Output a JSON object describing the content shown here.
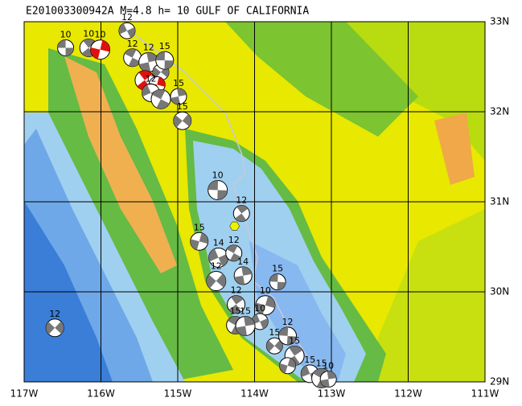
{
  "title": "E201003300942A M=4.8 h= 10 GULF OF CALIFORNIA",
  "map": {
    "lonlim": [
      -117,
      -111
    ],
    "latlim": [
      29,
      33
    ],
    "lon_ticks": [
      {
        "value": -117,
        "label": "117W"
      },
      {
        "value": -116,
        "label": "116W"
      },
      {
        "value": -115,
        "label": "115W"
      },
      {
        "value": -114,
        "label": "114W"
      },
      {
        "value": -113,
        "label": "113W"
      },
      {
        "value": -112,
        "label": "112W"
      },
      {
        "value": -111,
        "label": "111W"
      }
    ],
    "lat_ticks": [
      {
        "value": 29,
        "label": "29N"
      },
      {
        "value": 30,
        "label": "30N"
      },
      {
        "value": 31,
        "label": "31N"
      },
      {
        "value": 32,
        "label": "32N"
      },
      {
        "value": 33,
        "label": "33N"
      }
    ],
    "epicenter": {
      "lon": -114.26,
      "lat": 30.73,
      "color": "#f0f000"
    },
    "events": [
      {
        "lon": -116.46,
        "lat": 32.71,
        "depth": "10",
        "color": "#000000"
      },
      {
        "lon": -116.16,
        "lat": 32.71,
        "depth": "10",
        "color": "#000000"
      },
      {
        "lon": -116.01,
        "lat": 32.69,
        "depth": "10",
        "color": "#e01010"
      },
      {
        "lon": -115.66,
        "lat": 32.9,
        "depth": "12",
        "color": "#000000"
      },
      {
        "lon": -115.59,
        "lat": 32.6,
        "depth": "12",
        "color": "#000000"
      },
      {
        "lon": -115.38,
        "lat": 32.55,
        "depth": "12",
        "color": "#000000"
      },
      {
        "lon": -115.22,
        "lat": 32.44,
        "depth": "15",
        "color": "#000000"
      },
      {
        "lon": -115.17,
        "lat": 32.57,
        "depth": "15",
        "color": "#000000"
      },
      {
        "lon": -115.43,
        "lat": 32.35,
        "depth": null,
        "color": "#e01010"
      },
      {
        "lon": -115.27,
        "lat": 32.3,
        "depth": null,
        "color": "#e01010"
      },
      {
        "lon": -115.35,
        "lat": 32.21,
        "depth": "12",
        "color": "#000000"
      },
      {
        "lon": -115.22,
        "lat": 32.14,
        "depth": null,
        "color": "#000000"
      },
      {
        "lon": -114.99,
        "lat": 32.17,
        "depth": "15",
        "color": "#000000"
      },
      {
        "lon": -114.94,
        "lat": 31.9,
        "depth": "15",
        "color": "#000000"
      },
      {
        "lon": -114.48,
        "lat": 31.13,
        "depth": "10",
        "color": "#000000"
      },
      {
        "lon": -114.17,
        "lat": 30.87,
        "depth": "12",
        "color": "#000000"
      },
      {
        "lon": -114.72,
        "lat": 30.56,
        "depth": "15",
        "color": "#000000"
      },
      {
        "lon": -114.47,
        "lat": 30.38,
        "depth": "14",
        "color": "#000000"
      },
      {
        "lon": -114.27,
        "lat": 30.43,
        "depth": "12",
        "color": "#000000"
      },
      {
        "lon": -114.15,
        "lat": 30.18,
        "depth": "14",
        "color": "#000000"
      },
      {
        "lon": -114.5,
        "lat": 30.12,
        "depth": "12",
        "color": "#000000"
      },
      {
        "lon": -113.7,
        "lat": 30.11,
        "depth": "15",
        "color": "#000000"
      },
      {
        "lon": -114.24,
        "lat": 29.86,
        "depth": "12",
        "color": "#000000"
      },
      {
        "lon": -113.86,
        "lat": 29.85,
        "depth": "10",
        "color": "#000000"
      },
      {
        "lon": -113.93,
        "lat": 29.67,
        "depth": "10",
        "color": "#000000"
      },
      {
        "lon": -114.25,
        "lat": 29.63,
        "depth": "15",
        "color": "#000000"
      },
      {
        "lon": -114.12,
        "lat": 29.62,
        "depth": "15",
        "color": "#000000"
      },
      {
        "lon": -113.74,
        "lat": 29.4,
        "depth": "15",
        "color": "#000000"
      },
      {
        "lon": -113.57,
        "lat": 29.51,
        "depth": "12",
        "color": "#000000"
      },
      {
        "lon": -113.48,
        "lat": 29.29,
        "depth": "15",
        "color": "#000000"
      },
      {
        "lon": -113.57,
        "lat": 29.18,
        "depth": null,
        "color": "#000000"
      },
      {
        "lon": -113.28,
        "lat": 29.09,
        "depth": "15",
        "color": "#000000"
      },
      {
        "lon": -113.13,
        "lat": 29.04,
        "depth": "15",
        "color": "#000000"
      },
      {
        "lon": -113.04,
        "lat": 29.03,
        "depth": "10",
        "color": "#000000"
      },
      {
        "lon": -116.6,
        "lat": 29.6,
        "depth": "12",
        "color": "#000000"
      }
    ]
  }
}
